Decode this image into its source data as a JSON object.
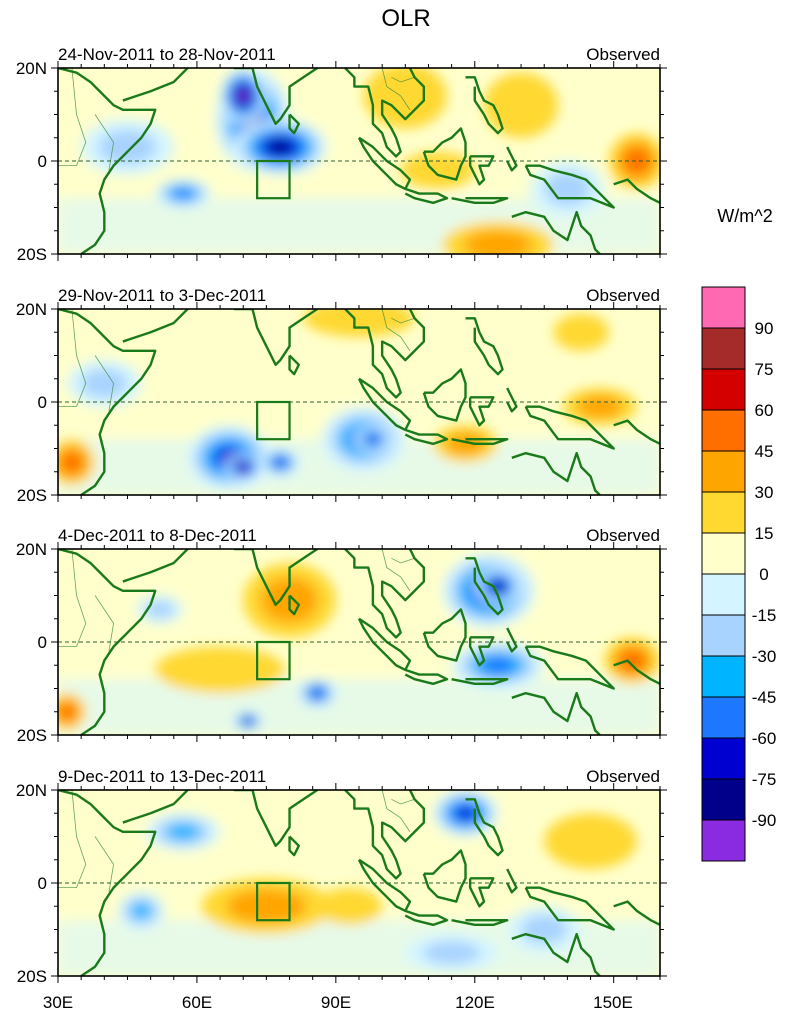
{
  "title": "OLR",
  "units": "W/m^2",
  "panel_label_right": "Observed",
  "panels": [
    {
      "period": "24-Nov-2011 to 28-Nov-2011"
    },
    {
      "period": "29-Nov-2011 to 3-Dec-2011"
    },
    {
      "period": "4-Dec-2011 to 8-Dec-2011"
    },
    {
      "period": "9-Dec-2011 to 13-Dec-2011"
    }
  ],
  "lat_labels": [
    "20N",
    "0",
    "20S"
  ],
  "lon_labels": [
    "30E",
    "60E",
    "90E",
    "120E",
    "150E"
  ],
  "lon_range": [
    30,
    160
  ],
  "lat_range": [
    -20,
    20
  ],
  "colorbar": {
    "labels": [
      "90",
      "75",
      "60",
      "45",
      "30",
      "15",
      "0",
      "-15",
      "-30",
      "-45",
      "-60",
      "-75",
      "-90"
    ],
    "colors": [
      "#ff69b4",
      "#a52a2a",
      "#d40000",
      "#ff6f00",
      "#ffa500",
      "#ffd830",
      "#ffffcc",
      "#d4f5ff",
      "#a9d3ff",
      "#00b4ff",
      "#1e78ff",
      "#0000d0",
      "#00008b",
      "#8a2be2"
    ]
  },
  "colors": {
    "coast": "#1a7a1a",
    "box": "#1a7a1a"
  },
  "blobs": [
    [
      {
        "lon": 72,
        "lat": 9,
        "rx": 8,
        "ry": 11,
        "c": 11
      },
      {
        "lon": 70,
        "lat": 14,
        "rx": 5,
        "ry": 6,
        "c": 13
      },
      {
        "lon": 78,
        "lat": 3,
        "rx": 10,
        "ry": 6,
        "c": 12
      },
      {
        "lon": 57,
        "lat": -7,
        "rx": 6,
        "ry": 3,
        "c": 10
      },
      {
        "lon": 45,
        "lat": 3,
        "rx": 10,
        "ry": 6,
        "c": 8
      },
      {
        "lon": 105,
        "lat": 14,
        "rx": 9,
        "ry": 7,
        "c": 5
      },
      {
        "lon": 130,
        "lat": 12,
        "rx": 8,
        "ry": 7,
        "c": 5
      },
      {
        "lon": 125,
        "lat": -18,
        "rx": 12,
        "ry": 5,
        "c": 4
      },
      {
        "lon": 155,
        "lat": 0,
        "rx": 6,
        "ry": 6,
        "c": 3
      },
      {
        "lon": 140,
        "lat": -6,
        "rx": 8,
        "ry": 6,
        "c": 8
      },
      {
        "lon": 112,
        "lat": -2,
        "rx": 8,
        "ry": 4,
        "c": 5
      }
    ],
    [
      {
        "lon": 67,
        "lat": -12,
        "rx": 9,
        "ry": 7,
        "c": 11
      },
      {
        "lon": 70,
        "lat": -14,
        "rx": 4,
        "ry": 3,
        "c": 13
      },
      {
        "lon": 78,
        "lat": -13,
        "rx": 4,
        "ry": 3,
        "c": 11
      },
      {
        "lon": 96,
        "lat": -8,
        "rx": 9,
        "ry": 7,
        "c": 10
      },
      {
        "lon": 98,
        "lat": -8,
        "rx": 4,
        "ry": 3,
        "c": 11
      },
      {
        "lon": 33,
        "lat": -13,
        "rx": 5,
        "ry": 5,
        "c": 3
      },
      {
        "lon": 118,
        "lat": -9,
        "rx": 7,
        "ry": 4,
        "c": 4
      },
      {
        "lon": 147,
        "lat": -1,
        "rx": 8,
        "ry": 4,
        "c": 4
      },
      {
        "lon": 95,
        "lat": 18,
        "rx": 12,
        "ry": 4,
        "c": 5
      },
      {
        "lon": 143,
        "lat": 15,
        "rx": 6,
        "ry": 4,
        "c": 5
      },
      {
        "lon": 40,
        "lat": 4,
        "rx": 8,
        "ry": 5,
        "c": 8
      }
    ],
    [
      {
        "lon": 123,
        "lat": 11,
        "rx": 10,
        "ry": 8,
        "c": 11
      },
      {
        "lon": 125,
        "lat": 12,
        "rx": 5,
        "ry": 4,
        "c": 12
      },
      {
        "lon": 125,
        "lat": -5,
        "rx": 10,
        "ry": 5,
        "c": 10
      },
      {
        "lon": 80,
        "lat": 9,
        "rx": 10,
        "ry": 8,
        "c": 4
      },
      {
        "lon": 65,
        "lat": -6,
        "rx": 14,
        "ry": 5,
        "c": 5
      },
      {
        "lon": 52,
        "lat": 7,
        "rx": 5,
        "ry": 3,
        "c": 8
      },
      {
        "lon": 86,
        "lat": -11,
        "rx": 4,
        "ry": 3,
        "c": 11
      },
      {
        "lon": 71,
        "lat": -17,
        "rx": 3,
        "ry": 2,
        "c": 12
      },
      {
        "lon": 154,
        "lat": -4,
        "rx": 6,
        "ry": 5,
        "c": 3
      },
      {
        "lon": 32,
        "lat": -15,
        "rx": 4,
        "ry": 4,
        "c": 3
      }
    ],
    [
      {
        "lon": 118,
        "lat": 15,
        "rx": 7,
        "ry": 5,
        "c": 11
      },
      {
        "lon": 57,
        "lat": 11,
        "rx": 8,
        "ry": 4,
        "c": 9
      },
      {
        "lon": 75,
        "lat": -5,
        "rx": 14,
        "ry": 6,
        "c": 4
      },
      {
        "lon": 93,
        "lat": -5,
        "rx": 7,
        "ry": 4,
        "c": 5
      },
      {
        "lon": 48,
        "lat": -6,
        "rx": 5,
        "ry": 4,
        "c": 9
      },
      {
        "lon": 115,
        "lat": -15,
        "rx": 10,
        "ry": 4,
        "c": 8
      },
      {
        "lon": 145,
        "lat": 9,
        "rx": 10,
        "ry": 6,
        "c": 5
      },
      {
        "lon": 135,
        "lat": -10,
        "rx": 8,
        "ry": 5,
        "c": 8
      }
    ]
  ]
}
